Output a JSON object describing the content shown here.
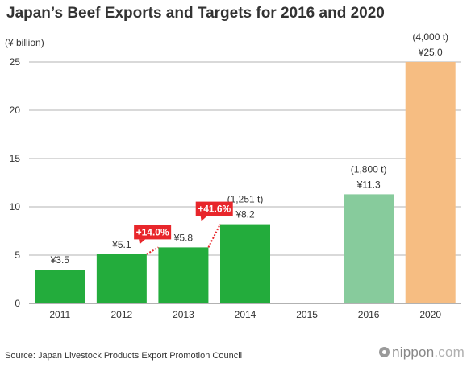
{
  "header": {
    "title": "Japan’s Beef Exports and Targets for 2016 and 2020",
    "unit_label": "(¥ billion)"
  },
  "footer": {
    "source": "Source: Japan Livestock Products Export Promotion Council",
    "brand_name": "nippon",
    "brand_suffix": ".com"
  },
  "colors": {
    "actual": "#23ac3c",
    "target_2016": "#87cb9c",
    "target_2020": "#f6bd82",
    "growth_badge": "#e8262b",
    "grid": "#b3b3b3"
  },
  "chart_data": {
    "type": "bar",
    "title": "Japan’s Beef Exports and Targets for 2016 and 2020",
    "ylabel": "(¥ billion)",
    "ylim": [
      0,
      25
    ],
    "yticks": [
      0,
      5,
      10,
      15,
      20,
      25
    ],
    "grid": true,
    "categories": [
      "2011",
      "2012",
      "2013",
      "2014",
      "2015",
      "2016",
      "2020"
    ],
    "values": [
      3.5,
      5.1,
      5.8,
      8.2,
      null,
      11.3,
      25.0
    ],
    "value_labels": [
      "¥3.5",
      "¥5.1",
      "¥5.8",
      "¥8.2",
      "",
      "¥11.3",
      "¥25.0"
    ],
    "volume_labels": [
      "",
      "",
      "",
      "(1,251 t)",
      "",
      "(1,800 t)",
      "(4,000 t)"
    ],
    "bar_colors": [
      "actual",
      "actual",
      "actual",
      "actual",
      "actual",
      "target_2016",
      "target_2020"
    ],
    "growth_annotations": [
      {
        "label": "+14.0%",
        "from": "2012",
        "to": "2013"
      },
      {
        "label": "+41.6%",
        "from": "2013",
        "to": "2014"
      }
    ],
    "source": "Source: Japan Livestock Products Export Promotion Council"
  }
}
